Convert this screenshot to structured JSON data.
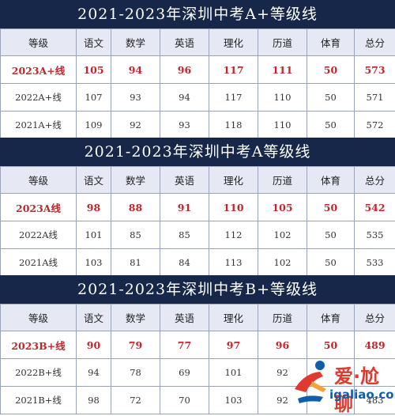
{
  "headers": [
    "等级",
    "语文",
    "数学",
    "英语",
    "理化",
    "历道",
    "体育",
    "总分"
  ],
  "sections": [
    {
      "title": "2021-2023年深圳中考A+等级线",
      "rows": [
        [
          "2023A+线",
          "105",
          "94",
          "96",
          "117",
          "111",
          "50",
          "573"
        ],
        [
          "2022A+线",
          "107",
          "93",
          "94",
          "117",
          "110",
          "50",
          "571"
        ],
        [
          "2021A+线",
          "109",
          "92",
          "93",
          "118",
          "110",
          "50",
          "572"
        ]
      ]
    },
    {
      "title": "2021-2023年深圳中考A等级线",
      "rows": [
        [
          "2023A线",
          "98",
          "88",
          "91",
          "110",
          "105",
          "50",
          "542"
        ],
        [
          "2022A线",
          "101",
          "85",
          "85",
          "112",
          "102",
          "50",
          "535"
        ],
        [
          "2021A线",
          "103",
          "81",
          "84",
          "113",
          "102",
          "50",
          "533"
        ]
      ]
    },
    {
      "title": "2021-2023年深圳中考B+等级线",
      "rows": [
        [
          "2023B+线",
          "90",
          "79",
          "77",
          "97",
          "96",
          "50",
          "489"
        ],
        [
          "2022B+线",
          "94",
          "78",
          "69",
          "101",
          "92",
          "",
          ""
        ],
        [
          "2021B+线",
          "98",
          "72",
          "70",
          "103",
          "92",
          "",
          "483"
        ]
      ]
    }
  ],
  "watermark": {
    "cn": "爱·尬聊",
    "en": "igaliao.com"
  },
  "colors": {
    "title_bg": "#16274a",
    "header_bg": "#e6e9f4",
    "highlight": "#c0272d",
    "border": "#9aa3b8"
  }
}
